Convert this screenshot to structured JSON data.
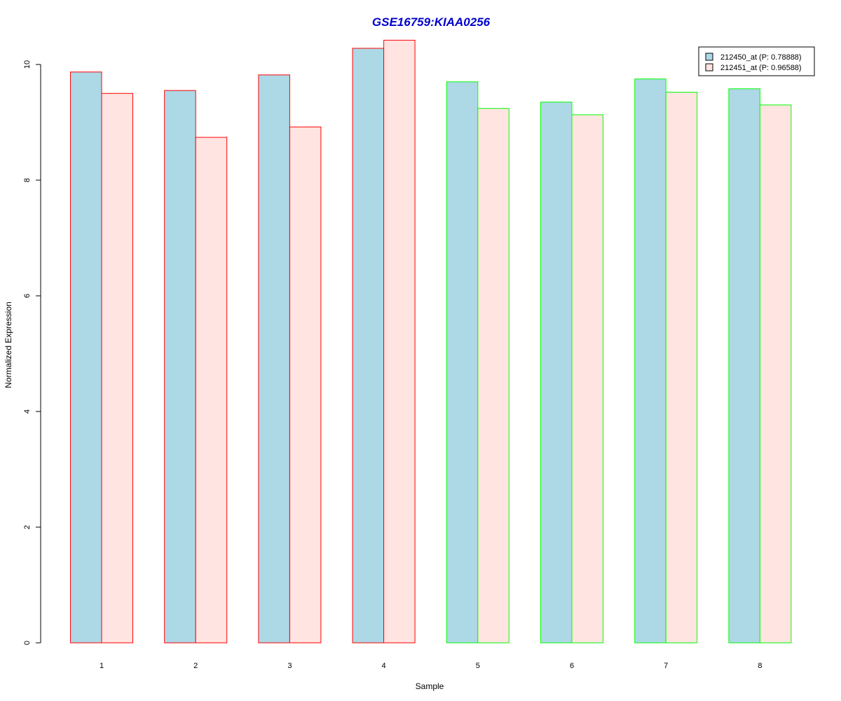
{
  "chart_data": {
    "type": "bar",
    "title": "GSE16759:KIAA0256",
    "xlabel": "Sample",
    "ylabel": "Normalized Expression",
    "categories": [
      "1",
      "2",
      "3",
      "4",
      "5",
      "6",
      "7",
      "8"
    ],
    "yticks": [
      "0",
      "2",
      "4",
      "6",
      "8",
      "10"
    ],
    "ylim": [
      0,
      10
    ],
    "legend_position": "top-right",
    "series": [
      {
        "name": "212450_at (P: 0.78888)",
        "fill": "#add8e6",
        "values": [
          9.87,
          9.55,
          9.82,
          10.28,
          9.7,
          9.35,
          9.75,
          9.58
        ]
      },
      {
        "name": "212451_at (P: 0.96588)",
        "fill": "#ffe4e1",
        "values": [
          9.5,
          8.74,
          8.92,
          10.42,
          9.24,
          9.13,
          9.52,
          9.3
        ]
      }
    ],
    "group_border_colors": [
      "#ff0000",
      "#ff0000",
      "#ff0000",
      "#ff0000",
      "#00ff00",
      "#00ff00",
      "#00ff00",
      "#00ff00"
    ],
    "title_color": "#0000cd"
  }
}
